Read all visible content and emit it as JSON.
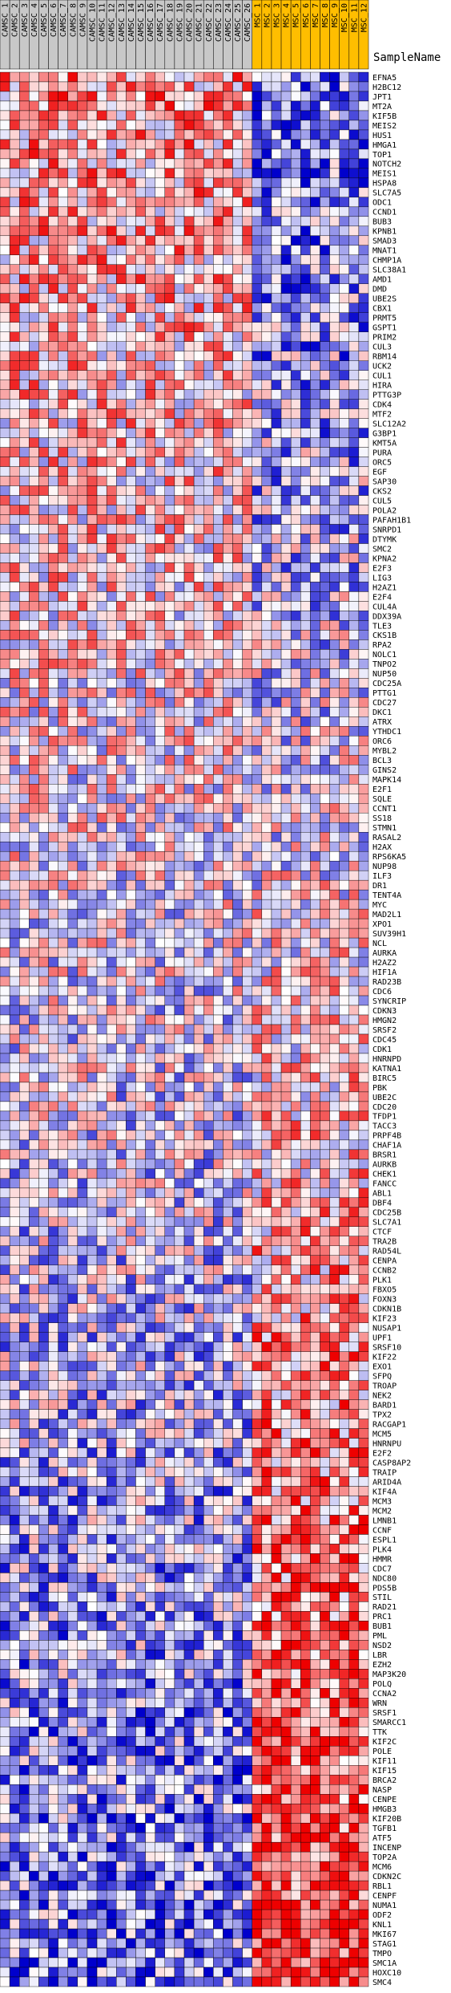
{
  "chart_data": {
    "type": "heatmap",
    "title": "",
    "corner_label": "SampleName",
    "columns": [
      {
        "label": "CAMSC_1",
        "group": "CAMSC"
      },
      {
        "label": "CAMSC_2",
        "group": "CAMSC"
      },
      {
        "label": "CAMSC_3",
        "group": "CAMSC"
      },
      {
        "label": "CAMSC_4",
        "group": "CAMSC"
      },
      {
        "label": "CAMSC_5",
        "group": "CAMSC"
      },
      {
        "label": "CAMSC_6",
        "group": "CAMSC"
      },
      {
        "label": "CAMSC_7",
        "group": "CAMSC"
      },
      {
        "label": "CAMSC_8",
        "group": "CAMSC"
      },
      {
        "label": "CAMSC_9",
        "group": "CAMSC"
      },
      {
        "label": "CAMSC_10",
        "group": "CAMSC"
      },
      {
        "label": "CAMSC_11",
        "group": "CAMSC"
      },
      {
        "label": "CAMSC_12",
        "group": "CAMSC"
      },
      {
        "label": "CAMSC_13",
        "group": "CAMSC"
      },
      {
        "label": "CAMSC_14",
        "group": "CAMSC"
      },
      {
        "label": "CAMSC_15",
        "group": "CAMSC"
      },
      {
        "label": "CAMSC_16",
        "group": "CAMSC"
      },
      {
        "label": "CAMSC_17",
        "group": "CAMSC"
      },
      {
        "label": "CAMSC_18",
        "group": "CAMSC"
      },
      {
        "label": "CAMSC_19",
        "group": "CAMSC"
      },
      {
        "label": "CAMSC_20",
        "group": "CAMSC"
      },
      {
        "label": "CAMSC_21",
        "group": "CAMSC"
      },
      {
        "label": "CAMSC_22",
        "group": "CAMSC"
      },
      {
        "label": "CAMSC_23",
        "group": "CAMSC"
      },
      {
        "label": "CAMSC_24",
        "group": "CAMSC"
      },
      {
        "label": "CAMSC_25",
        "group": "CAMSC"
      },
      {
        "label": "CAMSC_26",
        "group": "CAMSC"
      },
      {
        "label": "MSC_1",
        "group": "MSC"
      },
      {
        "label": "MSC_2",
        "group": "MSC"
      },
      {
        "label": "MSC_3",
        "group": "MSC"
      },
      {
        "label": "MSC_4",
        "group": "MSC"
      },
      {
        "label": "MSC_5",
        "group": "MSC"
      },
      {
        "label": "MSC_6",
        "group": "MSC"
      },
      {
        "label": "MSC_7",
        "group": "MSC"
      },
      {
        "label": "MSC_8",
        "group": "MSC"
      },
      {
        "label": "MSC_9",
        "group": "MSC"
      },
      {
        "label": "MSC_10",
        "group": "MSC"
      },
      {
        "label": "MSC_11",
        "group": "MSC"
      },
      {
        "label": "MSC_12",
        "group": "MSC"
      }
    ],
    "rows": [
      "EFNA5",
      "H2BC12",
      "JPT1",
      "MT2A",
      "KIF5B",
      "MEIS2",
      "HUS1",
      "HMGA1",
      "TOP1",
      "NOTCH2",
      "MEIS1",
      "HSPA8",
      "SLC7A5",
      "ODC1",
      "CCND1",
      "BUB3",
      "KPNB1",
      "SMAD3",
      "MNAT1",
      "CHMP1A",
      "SLC38A1",
      "AMD1",
      "DMD",
      "UBE2S",
      "CBX1",
      "PRMT5",
      "GSPT1",
      "PRIM2",
      "CUL3",
      "RBM14",
      "UCK2",
      "CUL1",
      "HIRA",
      "PTTG3P",
      "CDK4",
      "MTF2",
      "SLC12A2",
      "G3BP1",
      "KMT5A",
      "PURA",
      "ORC5",
      "EGF",
      "SAP30",
      "CKS2",
      "CUL5",
      "POLA2",
      "PAFAH1B1",
      "SNRPD1",
      "DTYMK",
      "SMC2",
      "KPNA2",
      "E2F3",
      "LIG3",
      "H2AZ1",
      "E2F4",
      "CUL4A",
      "DDX39A",
      "TLE3",
      "CKS1B",
      "RPA2",
      "NOLC1",
      "TNPO2",
      "NUP50",
      "CDC25A",
      "PTTG1",
      "CDC27",
      "DKC1",
      "ATRX",
      "YTHDC1",
      "ORC6",
      "MYBL2",
      "BCL3",
      "GINS2",
      "MAPK14",
      "E2F1",
      "SQLE",
      "CCNT1",
      "SS18",
      "STMN1",
      "RASAL2",
      "H2AX",
      "RPS6KA5",
      "NUP98",
      "ILF3",
      "DR1",
      "TENT4A",
      "MYC",
      "MAD2L1",
      "XPO1",
      "SUV39H1",
      "NCL",
      "AURKA",
      "H2AZ2",
      "HIF1A",
      "RAD23B",
      "CDC6",
      "SYNCRIP",
      "CDKN3",
      "HMGN2",
      "SRSF2",
      "CDC45",
      "CDK1",
      "HNRNPD",
      "KATNA1",
      "BIRC5",
      "PBK",
      "UBE2C",
      "CDC20",
      "TFDP1",
      "TACC3",
      "PRPF4B",
      "CHAF1A",
      "BRSR1",
      "AURKB",
      "CHEK1",
      "FANCC",
      "ABL1",
      "DBF4",
      "CDC25B",
      "SLC7A1",
      "CTCF",
      "TRA2B",
      "RAD54L",
      "CENPA",
      "CCNB2",
      "PLK1",
      "FBXO5",
      "FOXN3",
      "CDKN1B",
      "KIF23",
      "NUSAP1",
      "UPF1",
      "SRSF10",
      "KIF22",
      "EXO1",
      "SFPQ",
      "TROAP",
      "NEK2",
      "BARD1",
      "TPX2",
      "RACGAP1",
      "MCM5",
      "HNRNPU",
      "E2F2",
      "CASP8AP2",
      "TRAIP",
      "ARID4A",
      "KIF4A",
      "MCM3",
      "MCM2",
      "LMNB1",
      "CCNF",
      "ESPL1",
      "PLK4",
      "HMMR",
      "CDC7",
      "NDC80",
      "PDS5B",
      "STIL",
      "RAD21",
      "PRC1",
      "BUB1",
      "PML",
      "NSD2",
      "LBR",
      "EZH2",
      "MAP3K20",
      "POLQ",
      "CCNA2",
      "WRN",
      "SRSF1",
      "SMARCC1",
      "TTK",
      "KIF2C",
      "POLE",
      "KIF11",
      "KIF15",
      "BRCA2",
      "NASP",
      "CENPE",
      "HMGB3",
      "KIF20B",
      "TGFB1",
      "ATF5",
      "INCENP",
      "TOP2A",
      "MCM6",
      "CDKN2C",
      "RBL1",
      "CENPF",
      "NUMA1",
      "ODF2",
      "KNL1",
      "MKI67",
      "STAG1",
      "TMPO",
      "SMC1A",
      "HOXC10",
      "SMC4"
    ],
    "color_scale": {
      "low": "#0000cc",
      "mid": "#ffffff",
      "high": "#ee0000"
    },
    "group_colors": {
      "CAMSC": "#c8c8c8",
      "MSC": "#ffbe00"
    },
    "values": []
  }
}
